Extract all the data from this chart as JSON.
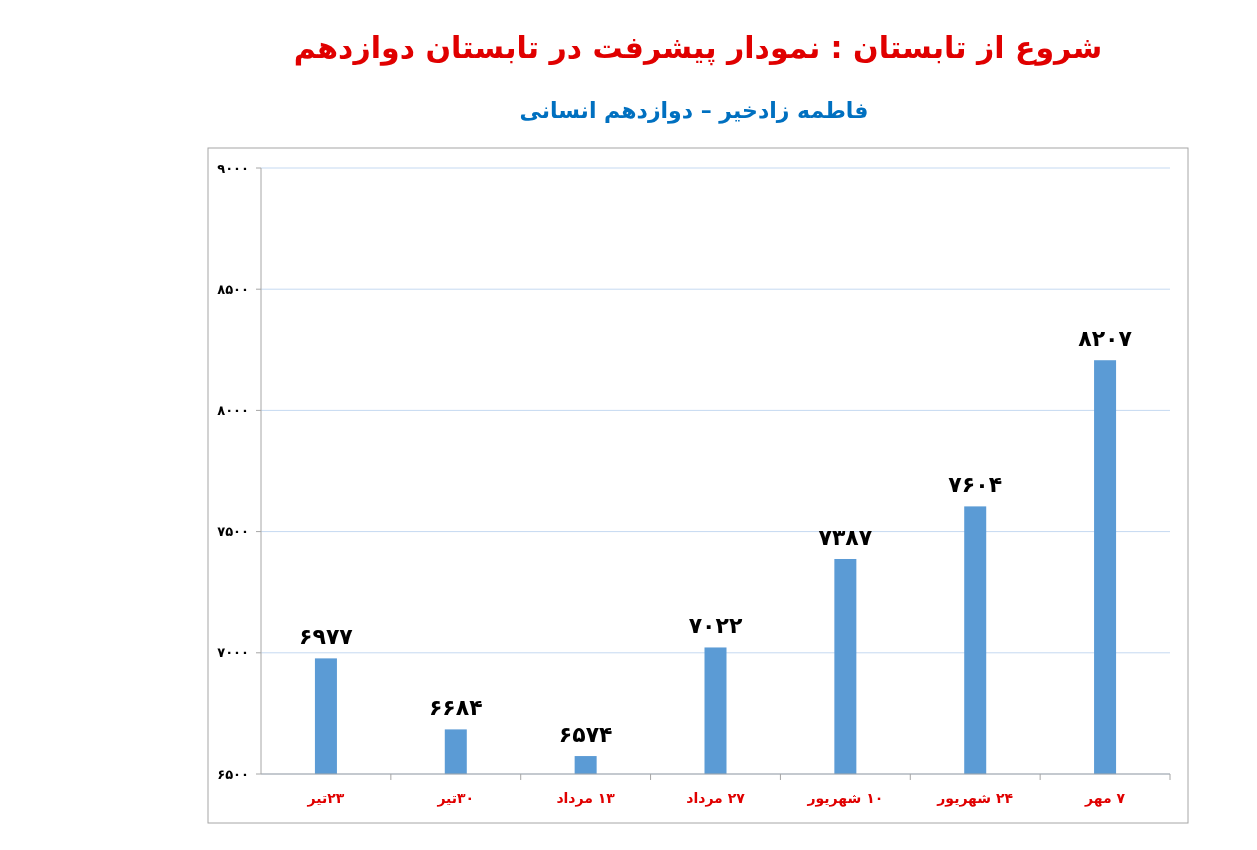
{
  "chart_data": {
    "type": "bar",
    "title": "شروع از تابستان : نمودار پیشرفت در تابستان دوازدهم",
    "subtitle": "فاطمه زادخیر – دوازدهم انسانی",
    "categories": [
      "۲۳تیر",
      "۳۰تیر",
      "۱۳ مرداد",
      "۲۷ مرداد",
      "۱۰ شهریور",
      "۲۴ شهریور",
      "۷ مهر"
    ],
    "values": [
      6977,
      6684,
      6574,
      7022,
      7387,
      7604,
      8207
    ],
    "value_labels": [
      "۶۹۷۷",
      "۶۶۸۴",
      "۶۵۷۴",
      "۷۰۲۲",
      "۷۳۸۷",
      "۷۶۰۴",
      "۸۲۰۷"
    ],
    "color": "#5b9bd5",
    "ylim": [
      6500,
      9000
    ],
    "yticks": [
      {
        "value": 6500,
        "label": "۶۵۰۰"
      },
      {
        "value": 7000,
        "label": "۷۰۰۰"
      },
      {
        "value": 7500,
        "label": "۷۵۰۰"
      },
      {
        "value": 8000,
        "label": "۸۰۰۰"
      },
      {
        "value": 8500,
        "label": "۸۵۰۰"
      },
      {
        "value": 9000,
        "label": "۹۰۰۰"
      }
    ],
    "grid": "y"
  }
}
